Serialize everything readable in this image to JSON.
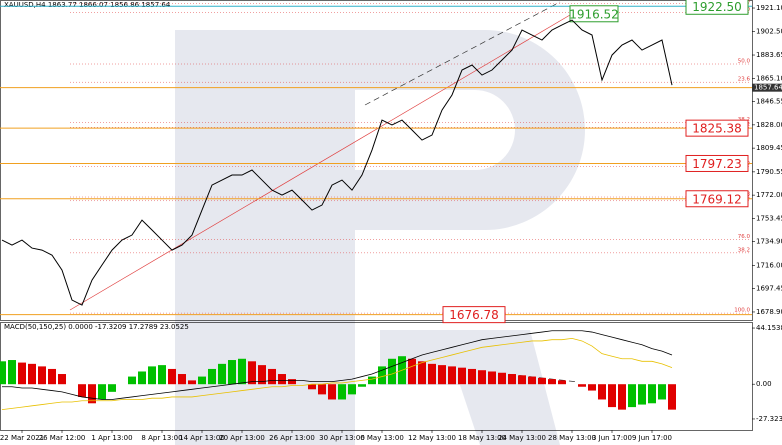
{
  "chart_data": {
    "type": "line",
    "title": "XAUUSD,H4 1863.77 1866.07 1856.86 1857.64",
    "categories": [
      null,
      null,
      "22 Mar 2021",
      null,
      null,
      null,
      "26 Mar 12:00",
      null,
      null,
      null,
      null,
      "1 Apr 13:00",
      null,
      null,
      null,
      null,
      "8 Apr 13:00",
      null,
      null,
      null,
      "14 Apr 13:00",
      null,
      null,
      null,
      "20 Apr 13:00",
      null,
      null,
      null,
      null,
      "26 Apr 13:00",
      null,
      null,
      null,
      null,
      "30 Apr 13:00",
      null,
      null,
      null,
      "6 May 13:00",
      null,
      null,
      null,
      null,
      "12 May 13:00",
      null,
      null,
      null,
      null,
      "18 May 13:00",
      null,
      null,
      null,
      "24 May 13:00",
      null,
      null,
      null,
      null,
      "28 May 13:00",
      null,
      null,
      null,
      "3 Jun 17:00",
      null,
      null,
      null,
      "9 Jun 17:00",
      null,
      null
    ],
    "series": [
      {
        "name": "XAUUSD",
        "color": "#000000",
        "values": [
          1736.2,
          1732.2,
          1736.2,
          1729.8,
          1728.2,
          1724.2,
          1712.3,
          1688.4,
          1684.4,
          1704.3,
          1716.3,
          1728.2,
          1736.2,
          1740.2,
          1752.1,
          1744.2,
          1736.2,
          1728.2,
          1732.2,
          1740.2,
          1760.1,
          1780.0,
          1784.0,
          1788.0,
          1788.0,
          1792.0,
          1784.0,
          1776.0,
          1772.1,
          1776.0,
          1768.1,
          1760.1,
          1764.1,
          1780.0,
          1784.0,
          1776.0,
          1788.0,
          1807.9,
          1831.8,
          1827.9,
          1831.8,
          1823.9,
          1815.9,
          1819.9,
          1839.8,
          1851.8,
          1871.7,
          1875.7,
          1867.7,
          1871.7,
          1879.7,
          1887.6,
          1903.6,
          1899.6,
          1895.6,
          1903.6,
          1907.6,
          1911.5,
          1903.6,
          1899.6,
          1863.7,
          1883.6,
          1891.6,
          1895.6,
          1887.6,
          1891.6,
          1895.6,
          1859.7
        ]
      }
    ],
    "ylim": [
      1672.5,
      1927.5
    ],
    "yticks": [
      {
        "value": 1921.1,
        "label": "1921.10"
      },
      {
        "value": 1902.5,
        "label": "1902.50"
      },
      {
        "value": 1883.65,
        "label": "1883.65"
      },
      {
        "value": 1865.1,
        "label": "1865.10"
      },
      {
        "value": 1846.55,
        "label": "1846.55"
      },
      {
        "value": 1828.0,
        "label": "1828.00"
      },
      {
        "value": 1809.45,
        "label": "1809.45"
      },
      {
        "value": 1790.55,
        "label": "1790.55"
      },
      {
        "value": 1772.0,
        "label": "1772.00"
      },
      {
        "value": 1753.45,
        "label": "1753.45"
      },
      {
        "value": 1734.9,
        "label": "1734.90"
      },
      {
        "value": 1716.0,
        "label": "1716.00"
      },
      {
        "value": 1697.45,
        "label": "1697.45"
      },
      {
        "value": 1678.9,
        "label": "1678.90"
      }
    ],
    "current_price": {
      "value": 1857.64,
      "label": "1857.64"
    },
    "levels": [
      {
        "value": 1922.5,
        "label": "1922.50",
        "color": "#2e9e2e"
      },
      {
        "value": 1825.38,
        "label": "1825.38",
        "color": "#e02020"
      },
      {
        "value": 1797.23,
        "label": "1797.23",
        "color": "#e02020"
      },
      {
        "value": 1769.12,
        "label": "1769.12",
        "color": "#e02020"
      },
      {
        "value": 1676.78,
        "label": "1676.78",
        "color": "#e02020"
      }
    ],
    "peak": {
      "value": 1916.52,
      "label": "1916.52"
    },
    "fib_labels": [
      {
        "value": 1924.5,
        "label": "61.8"
      },
      {
        "value": 1917.5,
        "label": "0.0"
      },
      {
        "value": 1876.5,
        "label": "50.0"
      },
      {
        "value": 1862.0,
        "label": "23.6"
      },
      {
        "value": 1830.0,
        "label": "38.2"
      },
      {
        "value": 1826.0,
        "label": "38.2"
      },
      {
        "value": 1795.0,
        "label": "50.0"
      },
      {
        "value": 1770.5,
        "label": "61.8"
      },
      {
        "value": 1767.5,
        "label": "23.6"
      },
      {
        "value": 1736.5,
        "label": "76.0"
      },
      {
        "value": 1726.0,
        "label": "38.2"
      },
      {
        "value": 1678.0,
        "label": "100.0"
      }
    ],
    "macd": {
      "title": "MACD(50,150,25) 0.0000 -17.3209 17.2789 23.0525",
      "y2lim": [
        -36,
        48.9
      ],
      "y2ticks": [
        {
          "value": 44.1538,
          "label": "44.1538"
        },
        {
          "value": 0,
          "label": "0.00"
        },
        {
          "value": -27.3234,
          "label": "-27.3234"
        }
      ],
      "histogram": [
        18,
        19,
        17,
        16,
        14,
        12,
        8,
        0,
        -10,
        -15,
        -12,
        -6,
        0,
        6,
        10,
        14,
        15,
        12,
        8,
        3,
        6,
        12,
        16,
        19,
        20,
        18,
        15,
        12,
        8,
        4,
        0,
        -4,
        -8,
        -12,
        -12,
        -8,
        -2,
        6,
        14,
        20,
        22,
        20,
        18,
        16,
        15,
        14,
        13,
        12,
        11,
        10,
        9,
        8,
        7,
        6,
        5,
        4,
        3,
        0,
        -2,
        -5,
        -12,
        -18,
        -20,
        -18,
        -16,
        -15,
        -12,
        -20
      ],
      "main": [
        -2,
        -2,
        -3,
        -3,
        -4,
        -5,
        -6,
        -8,
        -10,
        -11,
        -12,
        -12,
        -11,
        -10,
        -9,
        -8,
        -7,
        -6,
        -5,
        -4,
        -3,
        -2,
        -1,
        0,
        1,
        2,
        2,
        3,
        3,
        3,
        3,
        2,
        2,
        2,
        3,
        4,
        6,
        8,
        11,
        14,
        17,
        20,
        23,
        25,
        27,
        29,
        31,
        33,
        35,
        36,
        37,
        38,
        39,
        40,
        41,
        42,
        42,
        42,
        42,
        41,
        39,
        37,
        35,
        33,
        31,
        28,
        26,
        23
      ],
      "signal": [
        -20,
        -19,
        -18,
        -17,
        -16,
        -15,
        -14,
        -14,
        -13,
        -13,
        -13,
        -13,
        -12,
        -12,
        -12,
        -11,
        -11,
        -10,
        -10,
        -10,
        -9,
        -8,
        -7,
        -6,
        -5,
        -4,
        -3,
        -2,
        -2,
        -1,
        -1,
        0,
        0,
        1,
        1,
        2,
        3,
        4,
        6,
        8,
        11,
        14,
        17,
        19,
        21,
        23,
        25,
        27,
        29,
        30,
        31,
        32,
        33,
        34,
        34,
        35,
        35,
        36,
        34,
        30,
        24,
        22,
        20,
        20,
        18,
        18,
        16,
        13
      ],
      "up_color": "#00c000",
      "down_color": "#e00000",
      "main_color": "#000000",
      "signal_color": "#e8c000"
    }
  }
}
